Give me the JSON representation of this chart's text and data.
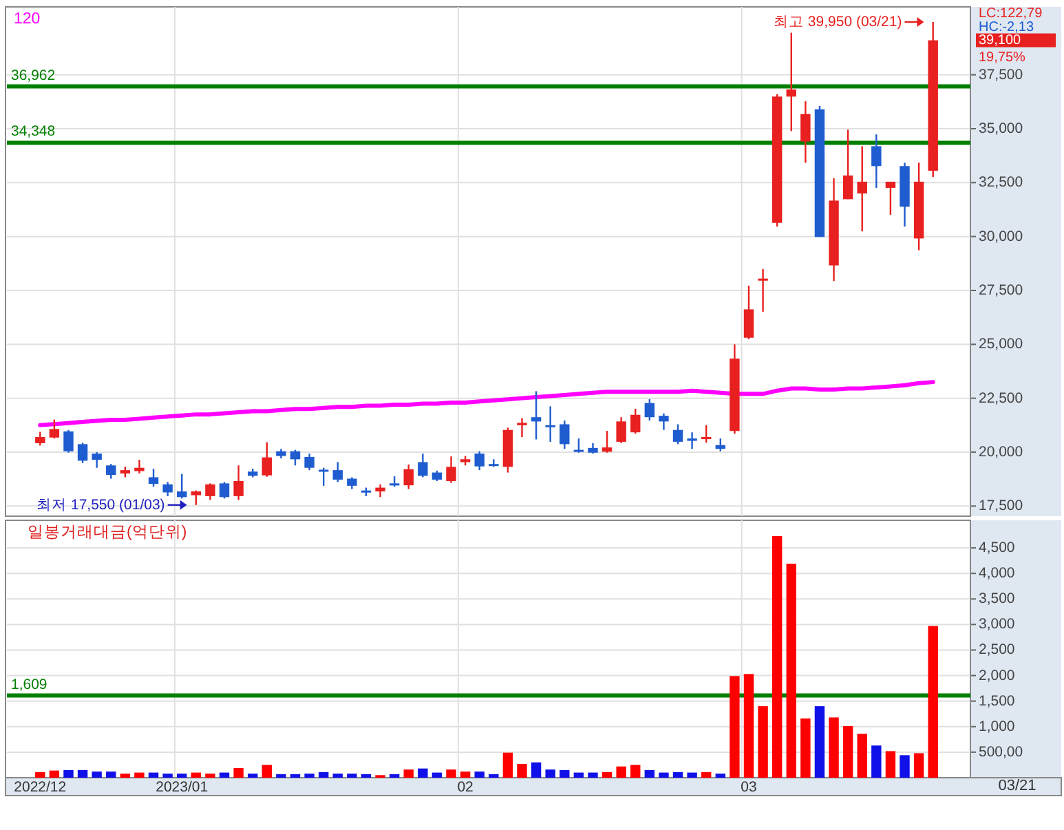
{
  "chart_data": [
    {
      "type": "candlestick",
      "categories": [
        "2022/12",
        null,
        null,
        null,
        null,
        null,
        null,
        null,
        null,
        null,
        "2023/01",
        null,
        null,
        null,
        null,
        null,
        null,
        null,
        null,
        null,
        null,
        null,
        null,
        null,
        null,
        null,
        null,
        null,
        null,
        null,
        "02",
        null,
        null,
        null,
        null,
        null,
        null,
        null,
        null,
        null,
        null,
        null,
        null,
        null,
        null,
        null,
        null,
        null,
        null,
        null,
        "03",
        null,
        null,
        null,
        null,
        null,
        null,
        null,
        null,
        null,
        null,
        null,
        null,
        null
      ],
      "ohlc": [
        [
          20414,
          20940,
          20304,
          20699
        ],
        [
          20677,
          21510,
          20633,
          21072
        ],
        [
          20962,
          21028,
          19975,
          20041
        ],
        [
          20370,
          20436,
          19493,
          19603
        ],
        [
          19932,
          19997,
          19274,
          19646
        ],
        [
          19383,
          19449,
          18769,
          18945
        ],
        [
          19010,
          19318,
          18835,
          19164
        ],
        [
          19120,
          19646,
          19010,
          19274
        ],
        [
          18835,
          19230,
          18396,
          18528
        ],
        [
          18506,
          18616,
          17958,
          18133
        ],
        [
          18177,
          18988,
          17848,
          17914
        ],
        [
          18002,
          18221,
          17550,
          18177
        ],
        [
          17958,
          18550,
          17782,
          18506
        ],
        [
          18550,
          18616,
          17848,
          17914
        ],
        [
          17958,
          19383,
          17782,
          18660
        ],
        [
          19098,
          19230,
          18835,
          18901
        ],
        [
          18923,
          20458,
          18857,
          19756
        ],
        [
          20041,
          20151,
          19712,
          19822
        ],
        [
          20041,
          20107,
          19383,
          19668
        ],
        [
          19778,
          19932,
          19164,
          19274
        ],
        [
          19186,
          19274,
          18440,
          19098
        ],
        [
          19164,
          19537,
          18616,
          18725
        ],
        [
          18769,
          18835,
          18287,
          18440
        ],
        [
          18221,
          18353,
          17958,
          18133
        ],
        [
          18177,
          18506,
          17914,
          18353
        ],
        [
          18550,
          18879,
          18396,
          18462
        ],
        [
          18462,
          19427,
          18287,
          19208
        ],
        [
          19537,
          19932,
          18835,
          18901
        ],
        [
          19054,
          19142,
          18660,
          18725
        ],
        [
          18660,
          19800,
          18572,
          19318
        ],
        [
          19537,
          19822,
          19383,
          19669
        ],
        [
          19932,
          20041,
          19164,
          19339
        ],
        [
          19449,
          19668,
          19318,
          19383
        ],
        [
          19318,
          21138,
          19054,
          21028
        ],
        [
          21247,
          21576,
          20699,
          21357
        ],
        [
          21620,
          22826,
          20590,
          21423
        ],
        [
          21247,
          22125,
          20480,
          21182
        ],
        [
          21291,
          21467,
          20151,
          20370
        ],
        [
          20107,
          20633,
          19975,
          20041
        ],
        [
          20195,
          20414,
          19932,
          19975
        ],
        [
          20019,
          20984,
          19975,
          20217
        ],
        [
          20480,
          21620,
          20414,
          21423
        ],
        [
          20918,
          22015,
          20853,
          21730
        ],
        [
          22278,
          22454,
          21467,
          21620
        ],
        [
          21686,
          21796,
          21028,
          21423
        ],
        [
          21028,
          21291,
          20370,
          20480
        ],
        [
          20633,
          20918,
          20151,
          20524
        ],
        [
          20633,
          21247,
          20436,
          20699
        ],
        [
          20326,
          20633,
          20041,
          20151
        ],
        [
          20980,
          24998,
          20850,
          24340
        ],
        [
          25306,
          27718,
          25240,
          26622
        ],
        [
          27960,
          28486,
          26513,
          28050
        ],
        [
          30635,
          36600,
          30460,
          36490
        ],
        [
          36490,
          39451,
          34890,
          36819
        ],
        [
          34407,
          36271,
          33420,
          35679
        ],
        [
          35898,
          36052,
          29977,
          29977
        ],
        [
          28661,
          32697,
          27938,
          31666
        ],
        [
          31731,
          34955,
          31731,
          32828
        ],
        [
          31995,
          34188,
          30240,
          32543
        ],
        [
          34188,
          34736,
          32258,
          33267
        ],
        [
          32258,
          32543,
          31008,
          32543
        ],
        [
          33267,
          33420,
          30460,
          31381
        ],
        [
          29911,
          33420,
          29363,
          32543
        ],
        [
          33047,
          39950,
          32762,
          39100
        ]
      ],
      "colors": [
        "#e8201f",
        "#e8201f",
        "#1e5ccf",
        "#1e5ccf",
        "#1e5ccf",
        "#1e5ccf",
        "#e8201f",
        "#e8201f",
        "#1e5ccf",
        "#1e5ccf",
        "#1e5ccf",
        "#e8201f",
        "#e8201f",
        "#1e5ccf",
        "#e8201f",
        "#1e5ccf",
        "#e8201f",
        "#1e5ccf",
        "#1e5ccf",
        "#1e5ccf",
        "#1e5ccf",
        "#1e5ccf",
        "#1e5ccf",
        "#1e5ccf",
        "#e8201f",
        "#1e5ccf",
        "#e8201f",
        "#1e5ccf",
        "#1e5ccf",
        "#e8201f",
        "#e8201f",
        "#1e5ccf",
        "#1e5ccf",
        "#e8201f",
        "#e8201f",
        "#1e5ccf",
        "#1e5ccf",
        "#1e5ccf",
        "#1e5ccf",
        "#1e5ccf",
        "#e8201f",
        "#e8201f",
        "#e8201f",
        "#1e5ccf",
        "#1e5ccf",
        "#1e5ccf",
        "#1e5ccf",
        "#e8201f",
        "#1e5ccf",
        "#e8201f",
        "#e8201f",
        "#e8201f",
        "#e8201f",
        "#e8201f",
        "#e8201f",
        "#1e5ccf",
        "#e8201f",
        "#e8201f",
        "#e8201f",
        "#1e5ccf",
        "#e8201f",
        "#1e5ccf",
        "#e8201f",
        "#e8201f"
      ],
      "series": [
        {
          "type": "line",
          "name": "120",
          "color": "#ff00ff",
          "values": [
            21250,
            21300,
            21350,
            21400,
            21450,
            21500,
            21500,
            21550,
            21600,
            21650,
            21700,
            21750,
            21750,
            21800,
            21850,
            21900,
            21900,
            21950,
            22000,
            22000,
            22050,
            22100,
            22100,
            22150,
            22150,
            22200,
            22200,
            22250,
            22250,
            22300,
            22300,
            22350,
            22400,
            22450,
            22500,
            22550,
            22600,
            22650,
            22700,
            22750,
            22800,
            22800,
            22800,
            22800,
            22800,
            22800,
            22850,
            22800,
            22750,
            22700,
            22700,
            22700,
            22850,
            22950,
            22950,
            22900,
            22900,
            22950,
            22950,
            23000,
            23050,
            23100,
            23200,
            23250
          ]
        }
      ],
      "ylim": [
        17030,
        40650
      ],
      "yticks": [
        {
          "value": 17500,
          "label": "17,500"
        },
        {
          "value": 20000,
          "label": "20,000"
        },
        {
          "value": 22500,
          "label": "22,500"
        },
        {
          "value": 25000,
          "label": "25,000"
        },
        {
          "value": 27500,
          "label": "27,500"
        },
        {
          "value": 30000,
          "label": "30,000"
        },
        {
          "value": 32500,
          "label": "32,500"
        },
        {
          "value": 35000,
          "label": "35,000"
        },
        {
          "value": 37500,
          "label": "37,500"
        }
      ],
      "tick_labels": "y",
      "grid": true,
      "legend": "top left",
      "ref_lines": [
        {
          "axis": "y",
          "value": 36962,
          "label": "36,962",
          "color": "#008000"
        },
        {
          "axis": "y",
          "value": 34348,
          "label": "34,348",
          "color": "#008000"
        }
      ],
      "annotations": [
        "LC:122,79",
        "HC:-2,13",
        "39,100",
        "19,75%",
        "최고 39,950 (03/21)",
        "최저 17,550 (01/03)"
      ]
    },
    {
      "type": "bar",
      "title": "일봉거래대금(억단위)",
      "categories": [
        "2022/12",
        null,
        null,
        null,
        null,
        null,
        null,
        null,
        null,
        null,
        "2023/01",
        null,
        null,
        null,
        null,
        null,
        null,
        null,
        null,
        null,
        null,
        null,
        null,
        null,
        null,
        null,
        null,
        null,
        null,
        null,
        "02",
        null,
        null,
        null,
        null,
        null,
        null,
        null,
        null,
        null,
        null,
        null,
        null,
        null,
        null,
        null,
        null,
        null,
        null,
        null,
        "03",
        null,
        null,
        null,
        null,
        null,
        null,
        null,
        null,
        null,
        null,
        null,
        null,
        null
      ],
      "values": [
        110,
        140,
        150,
        150,
        120,
        120,
        80,
        100,
        100,
        80,
        80,
        100,
        80,
        100,
        190,
        80,
        250,
        70,
        70,
        80,
        110,
        80,
        80,
        70,
        50,
        70,
        160,
        180,
        100,
        160,
        120,
        120,
        70,
        490,
        270,
        300,
        160,
        150,
        100,
        100,
        110,
        220,
        250,
        150,
        100,
        110,
        100,
        110,
        80,
        1990,
        2030,
        1400,
        4730,
        4190,
        1160,
        1400,
        1180,
        1010,
        860,
        630,
        520,
        440,
        480,
        2970
      ],
      "colors": [
        "#ff0000",
        "#ff0000",
        "#1010e8",
        "#1010e8",
        "#1010e8",
        "#1010e8",
        "#ff0000",
        "#ff0000",
        "#1010e8",
        "#1010e8",
        "#1010e8",
        "#ff0000",
        "#ff0000",
        "#1010e8",
        "#ff0000",
        "#1010e8",
        "#ff0000",
        "#1010e8",
        "#1010e8",
        "#1010e8",
        "#1010e8",
        "#1010e8",
        "#1010e8",
        "#1010e8",
        "#ff0000",
        "#1010e8",
        "#ff0000",
        "#1010e8",
        "#1010e8",
        "#ff0000",
        "#ff0000",
        "#1010e8",
        "#1010e8",
        "#ff0000",
        "#ff0000",
        "#1010e8",
        "#1010e8",
        "#1010e8",
        "#1010e8",
        "#1010e8",
        "#ff0000",
        "#ff0000",
        "#ff0000",
        "#1010e8",
        "#1010e8",
        "#1010e8",
        "#1010e8",
        "#ff0000",
        "#1010e8",
        "#ff0000",
        "#ff0000",
        "#ff0000",
        "#ff0000",
        "#ff0000",
        "#ff0000",
        "#1010e8",
        "#ff0000",
        "#ff0000",
        "#ff0000",
        "#1010e8",
        "#ff0000",
        "#1010e8",
        "#ff0000",
        "#ff0000"
      ],
      "ylim": [
        0,
        5040
      ],
      "yticks": [
        {
          "value": 500,
          "label": "500,00"
        },
        {
          "value": 1000,
          "label": "1,000"
        },
        {
          "value": 1500,
          "label": "1,500"
        },
        {
          "value": 2000,
          "label": "2,000"
        },
        {
          "value": 2500,
          "label": "2,500"
        },
        {
          "value": 3000,
          "label": "3,000"
        },
        {
          "value": 3500,
          "label": "3,500"
        },
        {
          "value": 4000,
          "label": "4,000"
        },
        {
          "value": 4500,
          "label": "4,500"
        }
      ],
      "grid": true,
      "ref_lines": [
        {
          "axis": "y",
          "value": 1609,
          "label": "1,609",
          "color": "#008000"
        }
      ],
      "annotations": [
        "03/21"
      ]
    }
  ]
}
